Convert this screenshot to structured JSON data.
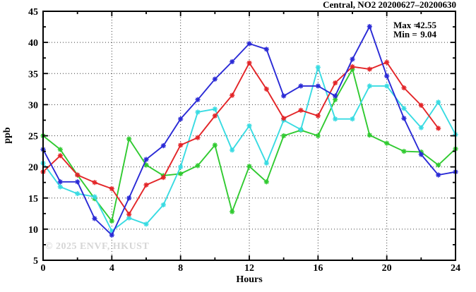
{
  "page": {
    "background": "#ffffff"
  },
  "chart_data": {
    "type": "line",
    "title": "Central, NO2 20200627–20200630",
    "xlabel": "Hours",
    "ylabel": "ppb",
    "xlim": [
      0,
      24
    ],
    "ylim": [
      5,
      45
    ],
    "xticks": [
      0,
      4,
      8,
      12,
      16,
      20,
      24
    ],
    "yticks": [
      5,
      10,
      15,
      20,
      25,
      30,
      35,
      40,
      45
    ],
    "x_minor_step": 2,
    "y_minor_step": 2.5,
    "grid": "dotted at major ticks",
    "legend_position": "none",
    "marker_style": "star",
    "annotations": {
      "max_label": "Max =",
      "max_value": "42.55",
      "min_label": "Min =",
      "min_value": "9.04"
    },
    "watermark": "© 2025 ENVF, HKUST",
    "categories": [
      0,
      1,
      2,
      3,
      4,
      5,
      6,
      7,
      8,
      9,
      10,
      11,
      12,
      13,
      14,
      15,
      16,
      17,
      18,
      19,
      20,
      21,
      22,
      23,
      24
    ],
    "series": [
      {
        "name": "series-blue",
        "color": "#2a2ad6",
        "x": [
          0,
          1,
          2,
          3,
          4,
          5,
          6,
          7,
          8,
          9,
          10,
          11,
          12,
          13,
          14,
          15,
          16,
          17,
          18,
          19,
          20,
          21,
          22,
          23,
          24
        ],
        "values": [
          22.8,
          17.6,
          17.6,
          11.7,
          9.04,
          15.0,
          21.2,
          23.4,
          27.7,
          30.8,
          34.1,
          36.9,
          39.8,
          38.9,
          31.4,
          33.0,
          33.0,
          31.4,
          37.3,
          42.55,
          34.6,
          27.8,
          22.0,
          18.7,
          19.2
        ]
      },
      {
        "name": "series-red",
        "color": "#e32528",
        "x": [
          0,
          1,
          2,
          3,
          4,
          5,
          6,
          7,
          8,
          9,
          10,
          11,
          12,
          13,
          14,
          15,
          16,
          17,
          18,
          19,
          20,
          21,
          22,
          23
        ],
        "values": [
          19.2,
          21.8,
          18.7,
          17.5,
          16.5,
          12.4,
          17.1,
          18.3,
          23.5,
          24.7,
          28.2,
          31.5,
          36.7,
          32.5,
          27.8,
          29.1,
          28.2,
          33.5,
          36.1,
          35.7,
          36.8,
          32.7,
          29.9,
          26.2
        ]
      },
      {
        "name": "series-cyan",
        "color": "#38dbe2",
        "x": [
          0,
          1,
          2,
          3,
          4,
          5,
          6,
          7,
          8,
          9,
          10,
          11,
          12,
          13,
          14,
          15,
          16,
          17,
          18,
          19,
          20,
          21,
          22,
          23,
          24
        ],
        "values": [
          20.6,
          16.8,
          15.7,
          15.2,
          9.7,
          11.8,
          10.8,
          13.9,
          20.0,
          28.8,
          29.3,
          22.7,
          26.6,
          20.6,
          27.5,
          26.0,
          36.0,
          27.7,
          27.7,
          33.0,
          33.0,
          29.4,
          26.3,
          30.4,
          25.2
        ]
      },
      {
        "name": "series-green",
        "color": "#30ca30",
        "x": [
          0,
          1,
          2,
          3,
          4,
          5,
          6,
          7,
          8,
          9,
          10,
          11,
          12,
          13,
          14,
          15,
          16,
          17,
          18,
          19,
          20,
          21,
          22,
          23,
          24
        ],
        "values": [
          25.0,
          22.8,
          18.7,
          14.9,
          11.3,
          24.5,
          20.3,
          18.6,
          18.9,
          20.2,
          23.5,
          12.8,
          20.1,
          17.6,
          25.0,
          25.9,
          25.0,
          30.8,
          35.7,
          25.1,
          23.8,
          22.5,
          22.4,
          20.3,
          22.9
        ]
      }
    ]
  }
}
